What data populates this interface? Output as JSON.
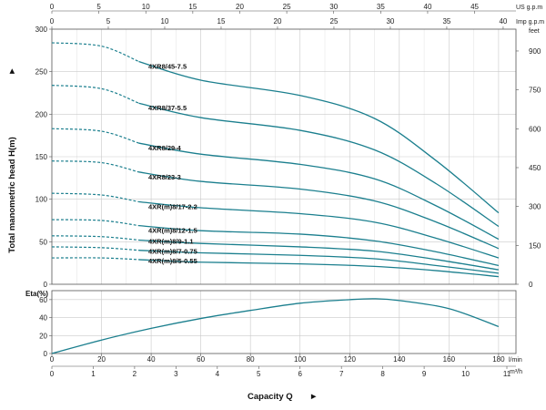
{
  "colors": {
    "curve": "#1b7f8e",
    "grid": "#c9c9c9",
    "axis": "#555555",
    "text": "#111111"
  },
  "chart_data": [
    {
      "type": "line",
      "ylabel": "Total manometric head H(m)",
      "ylabel_arrow": "►",
      "ylim": [
        0,
        300
      ],
      "y_ticks": [
        0,
        50,
        100,
        150,
        200,
        250,
        300
      ],
      "right_axis_unit": "feet",
      "right_axis_ticks": [
        0,
        150,
        300,
        450,
        600,
        750,
        900
      ],
      "top_axes": [
        {
          "unit": "US g.p.m",
          "ticks": [
            0,
            5,
            10,
            15,
            20,
            25,
            30,
            35,
            40,
            45
          ]
        },
        {
          "unit": "Imp g.p.m",
          "ticks": [
            0,
            5,
            10,
            15,
            20,
            25,
            30,
            35,
            40
          ]
        }
      ],
      "xlim": [
        0,
        187
      ],
      "x_unit": "l/min",
      "grid": true,
      "dashed_until_x": 35,
      "series": [
        {
          "name": "4XR8/45-7.5",
          "x": [
            0,
            20,
            35,
            60,
            100,
            130,
            155,
            180
          ],
          "y": [
            284,
            280,
            262,
            240,
            222,
            195,
            145,
            84
          ]
        },
        {
          "name": "4XR8/37-5.5",
          "x": [
            0,
            20,
            35,
            60,
            100,
            130,
            155,
            180
          ],
          "y": [
            234,
            230,
            213,
            196,
            181,
            158,
            118,
            68
          ]
        },
        {
          "name": "4XR8/29-4",
          "x": [
            0,
            20,
            35,
            60,
            100,
            130,
            155,
            180
          ],
          "y": [
            183,
            180,
            166,
            153,
            141,
            124,
            92,
            53
          ]
        },
        {
          "name": "4XR8/23-3",
          "x": [
            0,
            20,
            35,
            60,
            100,
            130,
            155,
            180
          ],
          "y": [
            145,
            143,
            132,
            121,
            112,
            98,
            73,
            42
          ]
        },
        {
          "name": "4XR(m)8/17-2.2",
          "x": [
            0,
            20,
            35,
            60,
            100,
            130,
            155,
            180
          ],
          "y": [
            107,
            105,
            97,
            90,
            83,
            73,
            54,
            31
          ]
        },
        {
          "name": "4XR(m)8/12-1.5",
          "x": [
            0,
            20,
            35,
            60,
            100,
            130,
            155,
            180
          ],
          "y": [
            76,
            75,
            69,
            63,
            59,
            51,
            38,
            22
          ]
        },
        {
          "name": "4XR(m)8/9-1.1",
          "x": [
            0,
            20,
            35,
            60,
            100,
            130,
            155,
            180
          ],
          "y": [
            57,
            56,
            52,
            48,
            44,
            39,
            29,
            17
          ]
        },
        {
          "name": "4XR(m)8/7-0.75",
          "x": [
            0,
            20,
            35,
            60,
            100,
            130,
            155,
            180
          ],
          "y": [
            44,
            43,
            40,
            37,
            34,
            30,
            22,
            13
          ]
        },
        {
          "name": "4XR(m)8/5-0.55",
          "x": [
            0,
            20,
            35,
            60,
            100,
            130,
            155,
            180
          ],
          "y": [
            31,
            31,
            29,
            26,
            24,
            21,
            16,
            9
          ]
        }
      ]
    },
    {
      "type": "line",
      "ylabel": "Eta(%)",
      "ylim": [
        0,
        70
      ],
      "y_ticks": [
        0,
        20,
        40,
        60
      ],
      "xlim": [
        0,
        187
      ],
      "grid": true,
      "series": [
        {
          "x": [
            0,
            20,
            40,
            60,
            80,
            100,
            120,
            130,
            140,
            160,
            180
          ],
          "y": [
            0,
            15,
            28,
            39,
            48,
            56,
            60,
            61,
            59,
            50,
            30
          ]
        }
      ]
    }
  ],
  "x_axis": {
    "lmin_ticks": [
      0,
      20,
      40,
      60,
      80,
      100,
      120,
      140,
      160,
      180
    ],
    "lmin_unit": "l/min",
    "m3h_ticks": [
      0,
      1,
      2,
      3,
      4,
      5,
      6,
      7,
      8,
      9,
      10,
      11
    ],
    "m3h_unit": "m³/h",
    "title": "Capacity Q",
    "title_arrow": "►"
  }
}
